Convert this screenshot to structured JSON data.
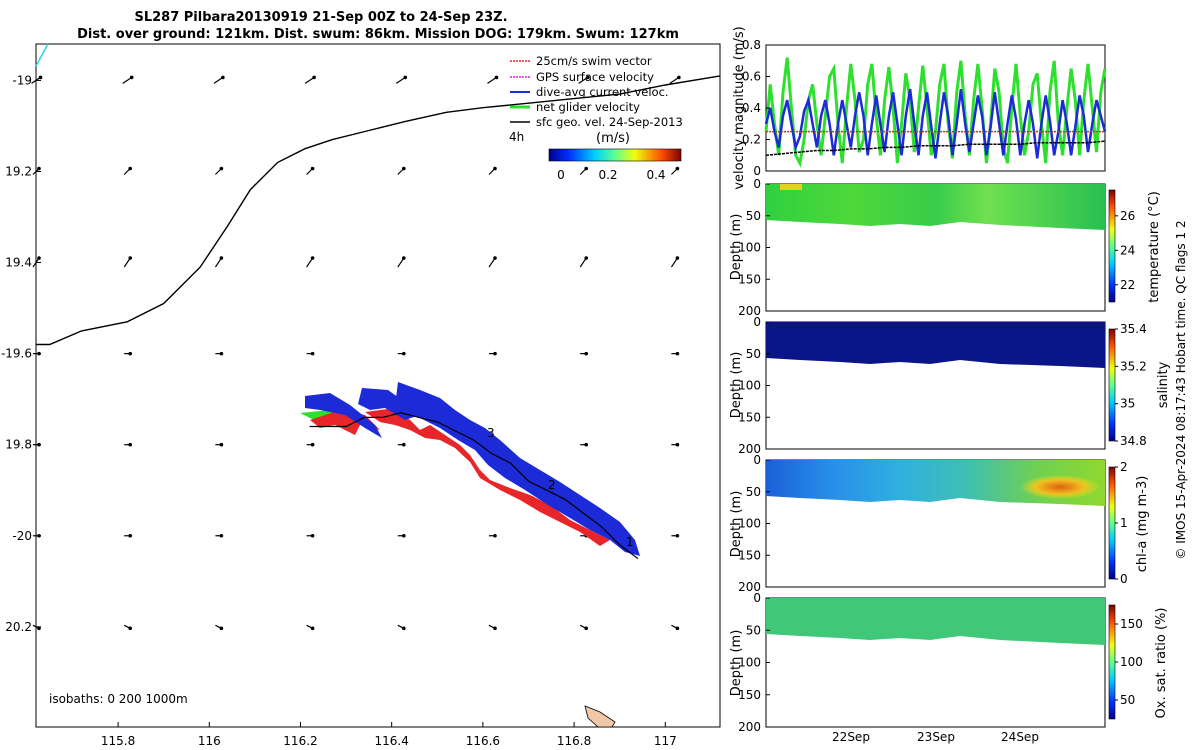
{
  "title_line1": "SL287 Pilbara20130919 21-Sep 00Z to 24-Sep 23Z.",
  "title_line2": "Dist. over ground: 121km. Dist. swum: 86km. Mission DOG: 179km. Swum: 127km",
  "side_text": "© IMOS 15-Apr-2024 08:17:43 Hobart time. QC flags 1  2",
  "colors": {
    "swim_vector": "#e8262a",
    "gps_surface": "#e020e0",
    "dive_avg": "#1c2ad8",
    "net_glider": "#2ee02e",
    "sfc_geo": "#000000",
    "coast": "#f0c8a8"
  },
  "map": {
    "legend": [
      {
        "label": "25cm/s swim vector",
        "color": "#e8262a"
      },
      {
        "label": "GPS surface velocity",
        "color": "#e020e0"
      },
      {
        "label": "dive-avg current veloc.",
        "color": "#1c2ad8"
      },
      {
        "label": "net glider velocity",
        "color": "#2ee02e"
      },
      {
        "label": "sfc geo. vel. 24-Sep-2013",
        "color": "#000000"
      }
    ],
    "scale_label": "4h",
    "colorbar_label": "(m/s)",
    "colorbar_ticks": [
      "0",
      "0.2",
      "0.4"
    ],
    "isobaths_text": "isobaths: 0   200  1000m",
    "track_labels": [
      "1",
      "2",
      "3"
    ]
  },
  "chart_data": [
    {
      "type": "scatter",
      "name": "map",
      "xlim": [
        115.62,
        117.12
      ],
      "ylim": [
        -20.42,
        -18.92
      ],
      "x_ticks": [
        115.8,
        116.0,
        116.2,
        116.4,
        116.6,
        116.8,
        117.0
      ],
      "x_tick_labels": [
        "115.8",
        "116",
        "116.2",
        "116.4",
        "116.6",
        "116.8",
        "117"
      ],
      "y_ticks": [
        -19.0,
        -19.2,
        -19.4,
        -19.6,
        -19.8,
        -20.0,
        -20.2
      ],
      "y_tick_labels": [
        "-19",
        "19.2",
        "19.4",
        "-19.6",
        "19.8",
        "-20",
        "20.2"
      ],
      "isobath_200m": [
        [
          115.62,
          -19.58
        ],
        [
          115.65,
          -19.58
        ],
        [
          115.72,
          -19.55
        ],
        [
          115.82,
          -19.53
        ],
        [
          115.9,
          -19.49
        ],
        [
          115.98,
          -19.41
        ],
        [
          116.04,
          -19.32
        ],
        [
          116.09,
          -19.24
        ],
        [
          116.15,
          -19.18
        ],
        [
          116.21,
          -19.15
        ],
        [
          116.27,
          -19.13
        ],
        [
          116.35,
          -19.11
        ],
        [
          116.43,
          -19.09
        ],
        [
          116.52,
          -19.07
        ],
        [
          116.6,
          -19.06
        ],
        [
          116.7,
          -19.05
        ],
        [
          116.8,
          -19.04
        ],
        [
          116.9,
          -19.03
        ],
        [
          117.0,
          -19.01
        ],
        [
          117.12,
          -18.99
        ]
      ],
      "glider_track": [
        [
          116.94,
          -20.05
        ],
        [
          116.9,
          -20.02
        ],
        [
          116.86,
          -19.98
        ],
        [
          116.82,
          -19.95
        ],
        [
          116.78,
          -19.92
        ],
        [
          116.74,
          -19.9
        ],
        [
          116.7,
          -19.88
        ],
        [
          116.66,
          -19.84
        ],
        [
          116.62,
          -19.82
        ],
        [
          116.58,
          -19.79
        ],
        [
          116.54,
          -19.77
        ],
        [
          116.5,
          -19.75
        ],
        [
          116.46,
          -19.74
        ],
        [
          116.42,
          -19.73
        ],
        [
          116.38,
          -19.74
        ],
        [
          116.34,
          -19.74
        ],
        [
          116.3,
          -19.76
        ],
        [
          116.26,
          -19.76
        ],
        [
          116.22,
          -19.76
        ]
      ],
      "sfc_geo_grid": {
        "lons": [
          115.62,
          115.82,
          116.02,
          116.22,
          116.42,
          116.62,
          116.82,
          117.02
        ],
        "lats": [
          -19.0,
          -19.2,
          -19.4,
          -19.6,
          -19.8,
          -20.0,
          -20.2
        ],
        "u": [
          0.03,
          0.02,
          0.02,
          0.02,
          0.02,
          0.02,
          0.02
        ],
        "v": [
          0.02,
          0.02,
          0.03,
          0.0,
          0.0,
          0.0,
          -0.01
        ]
      }
    },
    {
      "type": "line",
      "name": "velocity",
      "ylabel": "velocity magnitude (m/s)",
      "ylim": [
        0,
        0.8
      ],
      "y_ticks": [
        "0",
        "0.2",
        "0.4",
        "0.6",
        "0.8"
      ],
      "xlim": [
        0,
        4
      ],
      "series": [
        {
          "name": "net glider velocity",
          "color": "#2ee02e",
          "x": [
            0.0,
            0.05,
            0.1,
            0.15,
            0.2,
            0.25,
            0.3,
            0.35,
            0.4,
            0.45,
            0.5,
            0.55,
            0.6,
            0.65,
            0.7,
            0.75,
            0.8,
            0.85,
            0.9,
            0.95,
            1.0,
            1.05,
            1.1,
            1.15,
            1.2,
            1.25,
            1.3,
            1.35,
            1.4,
            1.45,
            1.5,
            1.55,
            1.6,
            1.65,
            1.7,
            1.75,
            1.8,
            1.85,
            1.9,
            1.95,
            2.0,
            2.05,
            2.1,
            2.15,
            2.2,
            2.25,
            2.3,
            2.35,
            2.4,
            2.45,
            2.5,
            2.55,
            2.6,
            2.65,
            2.7,
            2.75,
            2.8,
            2.85,
            2.9,
            2.95,
            3.0,
            3.05,
            3.1,
            3.15,
            3.2,
            3.25,
            3.3,
            3.35,
            3.4,
            3.45,
            3.5,
            3.55,
            3.6,
            3.65,
            3.7,
            3.75,
            3.8,
            3.85,
            3.9,
            3.95,
            4.0
          ],
          "y": [
            0.25,
            0.55,
            0.3,
            0.1,
            0.5,
            0.72,
            0.4,
            0.1,
            0.05,
            0.2,
            0.45,
            0.55,
            0.3,
            0.1,
            0.35,
            0.6,
            0.65,
            0.3,
            0.05,
            0.4,
            0.68,
            0.45,
            0.12,
            0.2,
            0.55,
            0.68,
            0.35,
            0.1,
            0.45,
            0.66,
            0.4,
            0.05,
            0.3,
            0.62,
            0.45,
            0.12,
            0.4,
            0.67,
            0.4,
            0.1,
            0.25,
            0.55,
            0.68,
            0.3,
            0.08,
            0.5,
            0.7,
            0.35,
            0.1,
            0.45,
            0.68,
            0.4,
            0.05,
            0.3,
            0.65,
            0.5,
            0.15,
            0.05,
            0.4,
            0.68,
            0.35,
            0.1,
            0.25,
            0.55,
            0.62,
            0.3,
            0.05,
            0.5,
            0.7,
            0.3,
            0.1,
            0.4,
            0.65,
            0.45,
            0.1,
            0.45,
            0.68,
            0.4,
            0.12,
            0.5,
            0.65
          ]
        },
        {
          "name": "dive-avg current veloc.",
          "color": "#1c2ad8",
          "x": [
            0.0,
            0.05,
            0.1,
            0.15,
            0.2,
            0.25,
            0.3,
            0.35,
            0.4,
            0.45,
            0.5,
            0.55,
            0.6,
            0.65,
            0.7,
            0.75,
            0.8,
            0.85,
            0.9,
            0.95,
            1.0,
            1.05,
            1.1,
            1.15,
            1.2,
            1.25,
            1.3,
            1.35,
            1.4,
            1.45,
            1.5,
            1.55,
            1.6,
            1.65,
            1.7,
            1.75,
            1.8,
            1.85,
            1.9,
            1.95,
            2.0,
            2.05,
            2.1,
            2.15,
            2.2,
            2.25,
            2.3,
            2.35,
            2.4,
            2.45,
            2.5,
            2.55,
            2.6,
            2.65,
            2.7,
            2.75,
            2.8,
            2.85,
            2.9,
            2.95,
            3.0,
            3.05,
            3.1,
            3.15,
            3.2,
            3.25,
            3.3,
            3.35,
            3.4,
            3.45,
            3.5,
            3.55,
            3.6,
            3.65,
            3.7,
            3.75,
            3.8,
            3.85,
            3.9,
            3.95,
            4.0
          ],
          "y": [
            0.3,
            0.4,
            0.25,
            0.15,
            0.35,
            0.45,
            0.3,
            0.15,
            0.22,
            0.38,
            0.45,
            0.3,
            0.15,
            0.35,
            0.45,
            0.3,
            0.1,
            0.3,
            0.45,
            0.3,
            0.15,
            0.35,
            0.5,
            0.35,
            0.1,
            0.3,
            0.48,
            0.3,
            0.12,
            0.35,
            0.5,
            0.3,
            0.1,
            0.35,
            0.52,
            0.3,
            0.1,
            0.35,
            0.5,
            0.28,
            0.08,
            0.3,
            0.5,
            0.35,
            0.1,
            0.3,
            0.52,
            0.3,
            0.12,
            0.3,
            0.48,
            0.35,
            0.1,
            0.28,
            0.5,
            0.3,
            0.1,
            0.3,
            0.48,
            0.33,
            0.1,
            0.3,
            0.45,
            0.3,
            0.08,
            0.3,
            0.48,
            0.32,
            0.1,
            0.25,
            0.45,
            0.3,
            0.1,
            0.28,
            0.48,
            0.35,
            0.12,
            0.3,
            0.45,
            0.35,
            0.25
          ]
        },
        {
          "name": "25cm/s swim vector",
          "color": "#e8262a",
          "x": [
            0.0,
            4.0
          ],
          "y": [
            0.25,
            0.25
          ]
        },
        {
          "name": "sfc geo. vel. 24-Sep-2013",
          "color": "#000000",
          "x": [
            0.0,
            0.2,
            0.4,
            0.6,
            0.8,
            1.0,
            1.2,
            1.4,
            1.6,
            1.8,
            2.0,
            2.2,
            2.4,
            2.6,
            2.8,
            3.0,
            3.2,
            3.4,
            3.6,
            3.8,
            4.0
          ],
          "y": [
            0.1,
            0.11,
            0.12,
            0.13,
            0.13,
            0.14,
            0.14,
            0.15,
            0.15,
            0.16,
            0.16,
            0.16,
            0.17,
            0.17,
            0.17,
            0.17,
            0.18,
            0.18,
            0.18,
            0.18,
            0.19
          ]
        }
      ]
    },
    {
      "type": "heatmap",
      "name": "temperature",
      "ylabel": "Depth (m)",
      "cbar_label": "temperature (°C)",
      "ylim": [
        200,
        0
      ],
      "y_ticks": [
        "0",
        "50",
        "100",
        "150",
        "200"
      ],
      "cbar_ticks": [
        "22",
        "24",
        "26"
      ],
      "cbar_range": [
        21,
        27.5
      ]
    },
    {
      "type": "heatmap",
      "name": "salinity",
      "ylabel": "Depth (m)",
      "cbar_label": "salinity",
      "ylim": [
        200,
        0
      ],
      "y_ticks": [
        "0",
        "50",
        "100",
        "150",
        "200"
      ],
      "cbar_ticks": [
        "34.8",
        "35",
        "35.2",
        "35.4"
      ],
      "cbar_range": [
        34.8,
        35.4
      ]
    },
    {
      "type": "heatmap",
      "name": "chl-a",
      "ylabel": "Depth (m)",
      "cbar_label": "chl-a (mg m-3)",
      "ylim": [
        200,
        0
      ],
      "y_ticks": [
        "0",
        "50",
        "100",
        "150",
        "200"
      ],
      "cbar_ticks": [
        "0",
        "1",
        "2"
      ],
      "cbar_range": [
        0,
        2
      ]
    },
    {
      "type": "heatmap",
      "name": "oxygen",
      "ylabel": "Depth (m)",
      "cbar_label": "Ox. sat. ratio (%)",
      "ylim": [
        200,
        0
      ],
      "y_ticks": [
        "0",
        "50",
        "100",
        "150",
        "200"
      ],
      "cbar_ticks": [
        "50",
        "100",
        "150"
      ],
      "cbar_range": [
        25,
        175
      ],
      "x_tick_labels": [
        "22Sep",
        "23Sep",
        "24Sep"
      ]
    }
  ]
}
